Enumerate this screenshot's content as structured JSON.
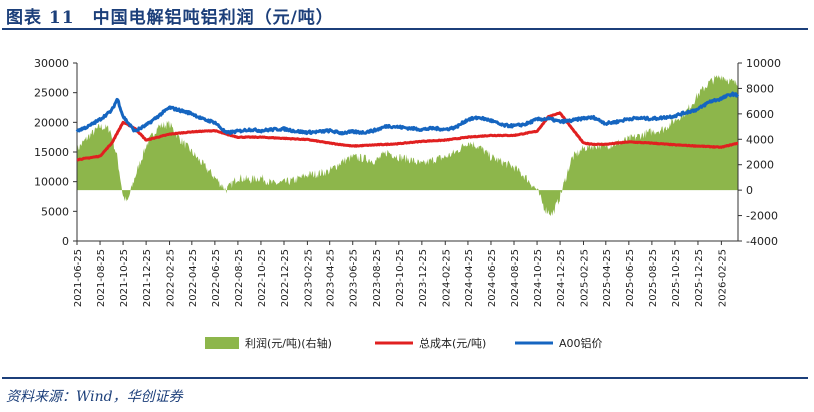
{
  "header": {
    "title": "图表 11　中国电解铝吨铝利润（元/吨）"
  },
  "footer": {
    "source": "资料来源：Wind，华创证券"
  },
  "colors": {
    "profit": "#8db64b",
    "cost": "#e02020",
    "price": "#1565c0",
    "rule": "#1c3f7a"
  },
  "chart_data": {
    "type": "line",
    "title": "中国电解铝吨铝利润（元/吨）",
    "x_type": "date",
    "x_range": [
      "2021-06-25",
      "2026-04-10"
    ],
    "x_ticks": [
      "2021-06-25",
      "2021-08-25",
      "2021-10-25",
      "2021-12-25",
      "2022-02-25",
      "2022-04-25",
      "2022-06-25",
      "2022-08-25",
      "2022-10-25",
      "2022-12-25",
      "2023-02-25",
      "2023-04-25",
      "2023-06-25",
      "2023-08-25",
      "2023-10-25",
      "2023-12-25",
      "2024-02-25",
      "2024-04-25",
      "2024-06-25",
      "2024-08-25",
      "2024-10-25",
      "2024-12-25",
      "2025-02-25",
      "2025-04-25",
      "2025-06-25",
      "2025-08-25",
      "2025-10-25",
      "2025-12-25",
      "2026-02-25"
    ],
    "y_left": {
      "range": [
        0,
        30000
      ],
      "ticks": [
        "0",
        "5000",
        "10000",
        "15000",
        "20000",
        "25000",
        "30000"
      ]
    },
    "y_right": {
      "range": [
        -4000,
        10000
      ],
      "ticks": [
        "-4000",
        "-2000",
        "0",
        "2000",
        "4000",
        "6000",
        "8000",
        "10000"
      ]
    },
    "legend": {
      "position": "bottom"
    },
    "series": [
      {
        "name": "利润(元/吨)(右轴)",
        "type": "area",
        "axis": "right",
        "points": [
          [
            "2021-06-25",
            3200
          ],
          [
            "2021-07-25",
            4200
          ],
          [
            "2021-08-25",
            5000
          ],
          [
            "2021-09-20",
            4800
          ],
          [
            "2021-10-10",
            2500
          ],
          [
            "2021-10-25",
            -500
          ],
          [
            "2021-11-05",
            -1000
          ],
          [
            "2021-11-25",
            1000
          ],
          [
            "2021-12-25",
            3500
          ],
          [
            "2022-01-25",
            5000
          ],
          [
            "2022-02-25",
            5200
          ],
          [
            "2022-03-25",
            4000
          ],
          [
            "2022-04-25",
            3000
          ],
          [
            "2022-05-25",
            2000
          ],
          [
            "2022-06-25",
            1000
          ],
          [
            "2022-07-25",
            0
          ],
          [
            "2022-08-25",
            1000
          ],
          [
            "2022-09-25",
            800
          ],
          [
            "2022-10-25",
            1000
          ],
          [
            "2022-11-25",
            500
          ],
          [
            "2022-12-25",
            600
          ],
          [
            "2023-01-25",
            800
          ],
          [
            "2023-02-25",
            1200
          ],
          [
            "2023-03-25",
            1300
          ],
          [
            "2023-04-25",
            1500
          ],
          [
            "2023-05-25",
            2200
          ],
          [
            "2023-06-25",
            2600
          ],
          [
            "2023-07-25",
            2500
          ],
          [
            "2023-08-25",
            2300
          ],
          [
            "2023-09-25",
            3000
          ],
          [
            "2023-10-25",
            2600
          ],
          [
            "2023-11-25",
            2400
          ],
          [
            "2023-12-25",
            2000
          ],
          [
            "2024-01-25",
            2400
          ],
          [
            "2024-02-25",
            2600
          ],
          [
            "2024-03-25",
            3000
          ],
          [
            "2024-04-25",
            3800
          ],
          [
            "2024-05-25",
            3400
          ],
          [
            "2024-06-25",
            2600
          ],
          [
            "2024-07-25",
            2200
          ],
          [
            "2024-08-25",
            1800
          ],
          [
            "2024-09-25",
            1000
          ],
          [
            "2024-10-25",
            0
          ],
          [
            "2024-11-15",
            -1500
          ],
          [
            "2024-12-05",
            -1900
          ],
          [
            "2024-12-25",
            -500
          ],
          [
            "2025-01-25",
            2500
          ],
          [
            "2025-02-25",
            3300
          ],
          [
            "2025-03-25",
            3500
          ],
          [
            "2025-04-25",
            3500
          ],
          [
            "2025-05-25",
            3700
          ],
          [
            "2025-06-25",
            4000
          ],
          [
            "2025-07-25",
            4300
          ],
          [
            "2025-08-25",
            4600
          ],
          [
            "2025-09-25",
            4800
          ],
          [
            "2025-10-25",
            5500
          ],
          [
            "2025-11-25",
            6200
          ],
          [
            "2025-12-25",
            7500
          ],
          [
            "2026-01-25",
            8500
          ],
          [
            "2026-02-25",
            9000
          ],
          [
            "2026-03-25",
            8500
          ],
          [
            "2026-04-10",
            8300
          ]
        ]
      },
      {
        "name": "总成本(元/吨)",
        "type": "line",
        "axis": "left",
        "points": [
          [
            "2021-06-25",
            13700
          ],
          [
            "2021-08-25",
            14300
          ],
          [
            "2021-09-25",
            16500
          ],
          [
            "2021-10-25",
            20000
          ],
          [
            "2021-11-25",
            19000
          ],
          [
            "2021-12-25",
            17000
          ],
          [
            "2022-01-25",
            17500
          ],
          [
            "2022-02-25",
            18000
          ],
          [
            "2022-03-25",
            18200
          ],
          [
            "2022-04-25",
            18400
          ],
          [
            "2022-05-25",
            18500
          ],
          [
            "2022-06-25",
            18600
          ],
          [
            "2022-07-25",
            18000
          ],
          [
            "2022-08-25",
            17500
          ],
          [
            "2022-10-25",
            17500
          ],
          [
            "2022-12-25",
            17300
          ],
          [
            "2023-02-25",
            17100
          ],
          [
            "2023-04-25",
            16500
          ],
          [
            "2023-06-25",
            16000
          ],
          [
            "2023-08-25",
            16200
          ],
          [
            "2023-10-25",
            16400
          ],
          [
            "2023-12-25",
            16800
          ],
          [
            "2024-02-25",
            17000
          ],
          [
            "2024-04-25",
            17500
          ],
          [
            "2024-06-25",
            17800
          ],
          [
            "2024-08-25",
            17800
          ],
          [
            "2024-10-25",
            18500
          ],
          [
            "2024-11-25",
            21000
          ],
          [
            "2024-12-25",
            21600
          ],
          [
            "2025-01-25",
            19000
          ],
          [
            "2025-02-25",
            16500
          ],
          [
            "2025-03-25",
            16300
          ],
          [
            "2025-04-25",
            16300
          ],
          [
            "2025-06-25",
            16700
          ],
          [
            "2025-08-25",
            16500
          ],
          [
            "2025-10-25",
            16200
          ],
          [
            "2025-12-25",
            16000
          ],
          [
            "2026-02-25",
            15800
          ],
          [
            "2026-04-10",
            16500
          ]
        ]
      },
      {
        "name": "A00铝价",
        "type": "line",
        "axis": "left",
        "points": [
          [
            "2021-06-25",
            18600
          ],
          [
            "2021-07-25",
            19300
          ],
          [
            "2021-08-25",
            20500
          ],
          [
            "2021-09-25",
            22000
          ],
          [
            "2021-10-10",
            24000
          ],
          [
            "2021-10-25",
            21000
          ],
          [
            "2021-11-25",
            18500
          ],
          [
            "2021-12-25",
            19500
          ],
          [
            "2022-01-25",
            21000
          ],
          [
            "2022-02-25",
            22500
          ],
          [
            "2022-03-25",
            22000
          ],
          [
            "2022-04-25",
            21500
          ],
          [
            "2022-05-25",
            20500
          ],
          [
            "2022-06-25",
            20000
          ],
          [
            "2022-07-25",
            18200
          ],
          [
            "2022-08-25",
            18500
          ],
          [
            "2022-09-25",
            18800
          ],
          [
            "2022-10-25",
            18600
          ],
          [
            "2022-11-25",
            18800
          ],
          [
            "2022-12-25",
            18900
          ],
          [
            "2023-01-25",
            18500
          ],
          [
            "2023-02-25",
            18300
          ],
          [
            "2023-03-25",
            18400
          ],
          [
            "2023-04-25",
            18600
          ],
          [
            "2023-05-25",
            18200
          ],
          [
            "2023-06-25",
            18400
          ],
          [
            "2023-07-25",
            18300
          ],
          [
            "2023-08-25",
            18700
          ],
          [
            "2023-09-25",
            19400
          ],
          [
            "2023-10-25",
            19200
          ],
          [
            "2023-11-25",
            19000
          ],
          [
            "2023-12-25",
            18800
          ],
          [
            "2024-01-25",
            19000
          ],
          [
            "2024-02-25",
            18800
          ],
          [
            "2024-03-25",
            19200
          ],
          [
            "2024-04-25",
            20500
          ],
          [
            "2024-05-25",
            20800
          ],
          [
            "2024-06-25",
            20300
          ],
          [
            "2024-07-25",
            19500
          ],
          [
            "2024-08-25",
            19400
          ],
          [
            "2024-09-25",
            19700
          ],
          [
            "2024-10-25",
            20500
          ],
          [
            "2024-11-25",
            20600
          ],
          [
            "2024-12-25",
            20100
          ],
          [
            "2025-01-25",
            20300
          ],
          [
            "2025-02-25",
            20700
          ],
          [
            "2025-03-25",
            20800
          ],
          [
            "2025-04-25",
            19800
          ],
          [
            "2025-05-25",
            20100
          ],
          [
            "2025-06-25",
            20600
          ],
          [
            "2025-07-25",
            20700
          ],
          [
            "2025-08-25",
            20600
          ],
          [
            "2025-09-25",
            20800
          ],
          [
            "2025-10-25",
            21100
          ],
          [
            "2025-11-25",
            21700
          ],
          [
            "2025-12-25",
            22200
          ],
          [
            "2026-01-25",
            23500
          ],
          [
            "2026-02-25",
            24000
          ],
          [
            "2026-03-25",
            24800
          ],
          [
            "2026-04-10",
            24500
          ]
        ]
      }
    ]
  }
}
